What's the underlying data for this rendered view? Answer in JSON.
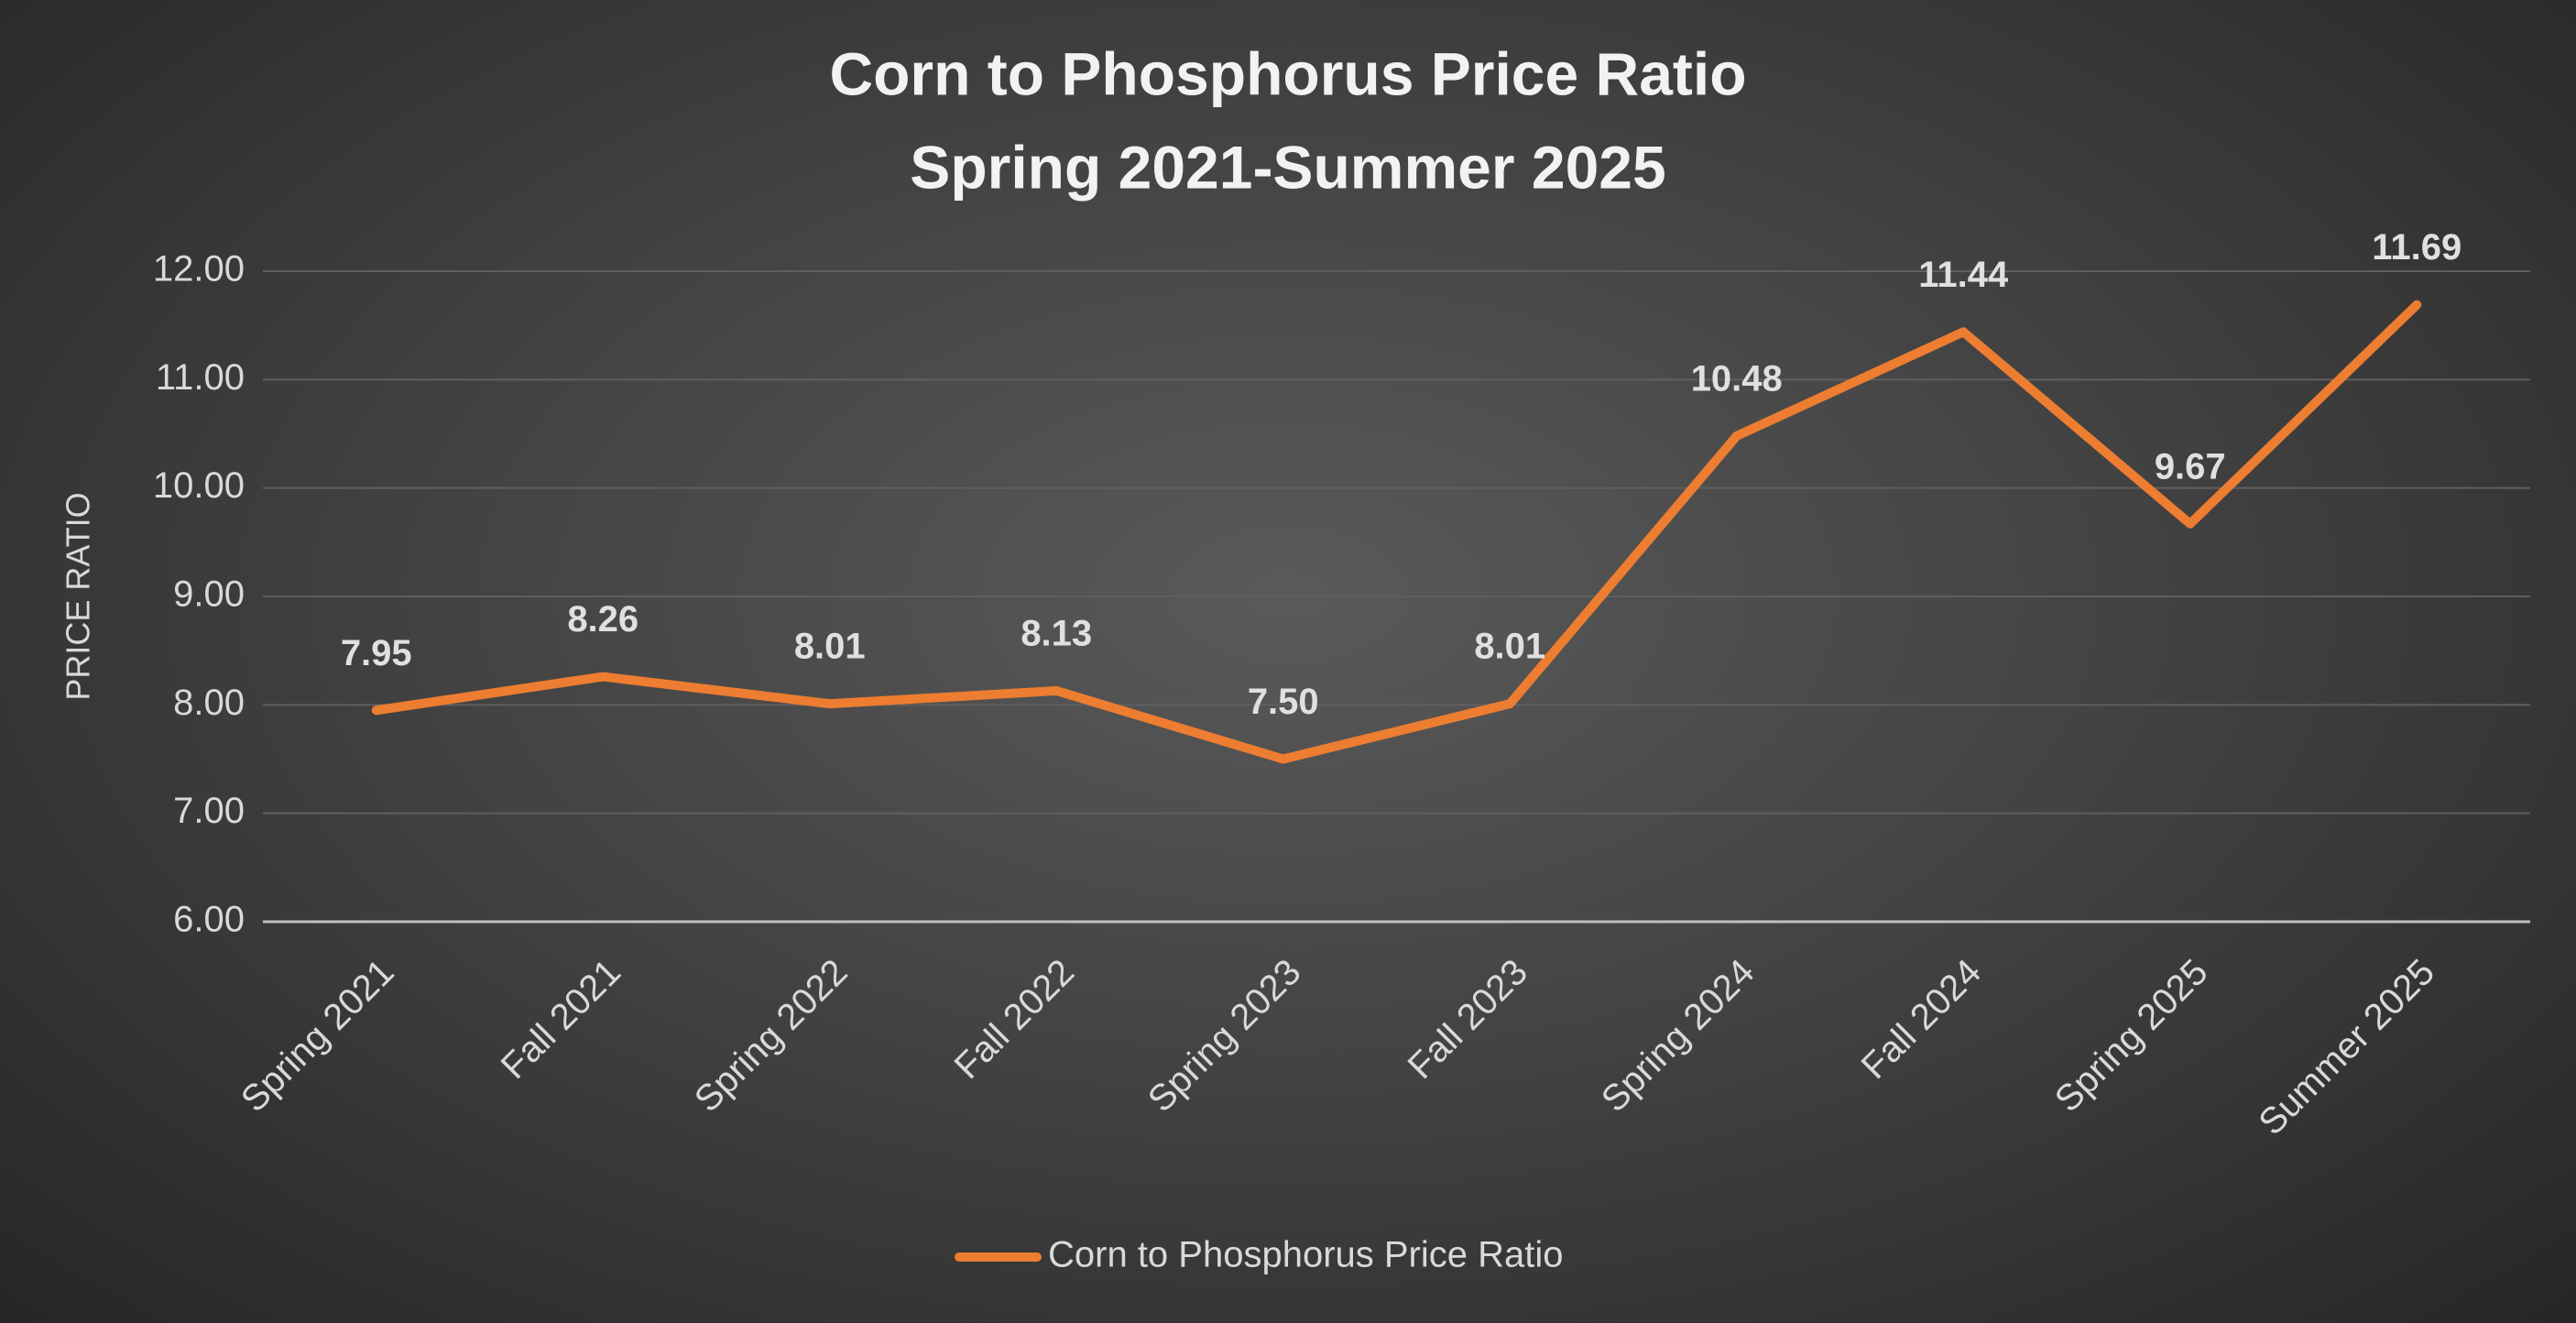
{
  "chart_data": {
    "type": "line",
    "title": "Corn to Phosphorus Price Ratio",
    "subtitle": "Spring 2021-Summer 2025",
    "y_label": "PRICE RATIO",
    "categories": [
      "Spring 2021",
      "Fall 2021",
      "Spring 2022",
      "Fall 2022",
      "Spring 2023",
      "Fall 2023",
      "Spring 2024",
      "Fall 2024",
      "Spring 2025",
      "Summer 2025"
    ],
    "series": [
      {
        "name": "Corn to Phosphorus Price Ratio",
        "color": "#ed7d31",
        "values": [
          7.95,
          8.26,
          8.01,
          8.13,
          7.5,
          8.01,
          10.48,
          11.44,
          9.67,
          11.69
        ],
        "value_labels": [
          "7.95",
          "8.26",
          "8.01",
          "8.13",
          "7.50",
          "8.01",
          "10.48",
          "11.44",
          "9.67",
          "11.69"
        ]
      }
    ],
    "ylim": [
      6,
      12
    ],
    "yticks": [
      {
        "value": 6,
        "label": "6.00"
      },
      {
        "value": 7,
        "label": "7.00"
      },
      {
        "value": 8,
        "label": "8.00"
      },
      {
        "value": 9,
        "label": "9.00"
      },
      {
        "value": 10,
        "label": "10.00"
      },
      {
        "value": 11,
        "label": "11.00"
      },
      {
        "value": 12,
        "label": "12.00"
      }
    ],
    "grid": true,
    "legend": "bottom"
  }
}
